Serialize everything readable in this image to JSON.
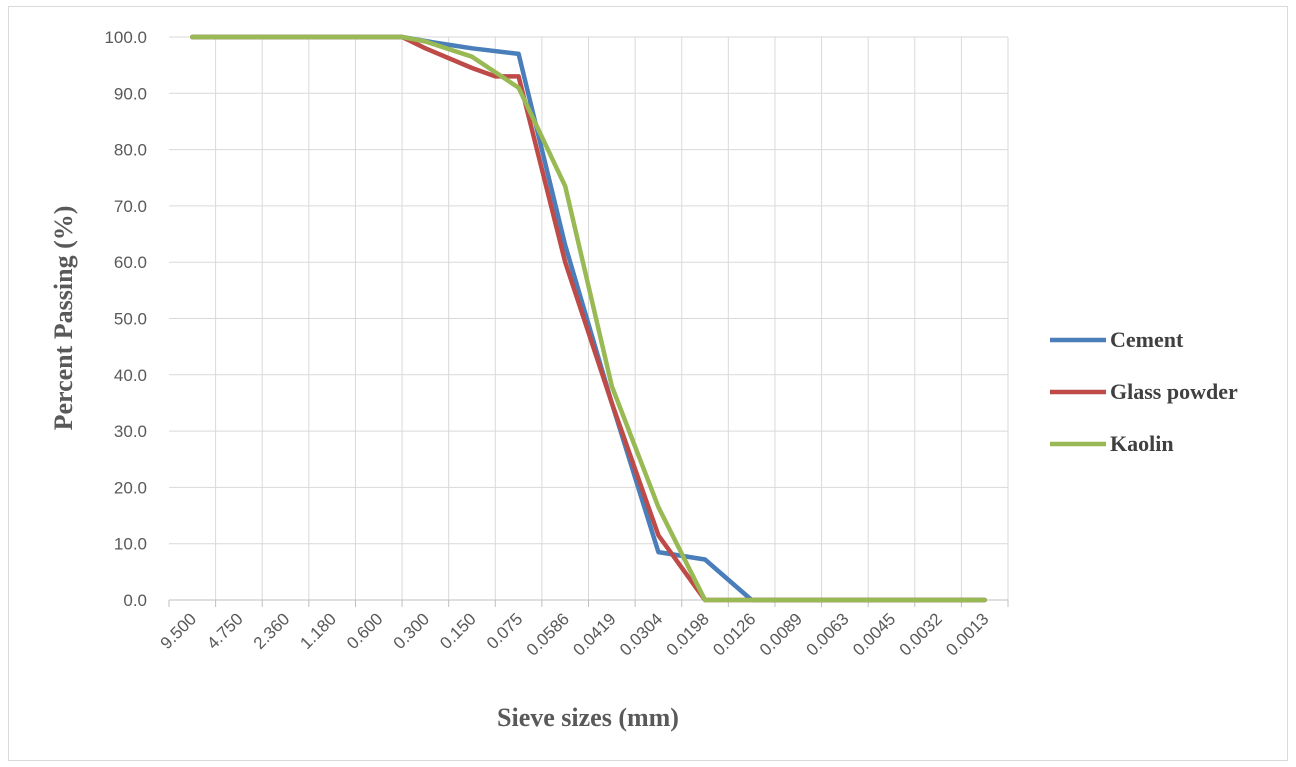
{
  "chart_data": {
    "type": "line",
    "xlabel": "Sieve sizes (mm)",
    "ylabel": "Percent Passing (%)",
    "ylim": [
      0,
      100
    ],
    "ytick_step": 10,
    "y_tick_decimals": 1,
    "grid": true,
    "legend_position": "right",
    "categories": [
      "9.500",
      "4.750",
      "2.360",
      "1.180",
      "0.600",
      "0.300",
      "0.150",
      "0.075",
      "0.0586",
      "0.0419",
      "0.0304",
      "0.0198",
      "0.0126",
      "0.0089",
      "0.0063",
      "0.0045",
      "0.0032",
      "0.0013"
    ],
    "series": [
      {
        "name": "Cement",
        "color": "#4a7ebb",
        "points": [
          [
            0.5,
            100
          ],
          [
            1,
            100
          ],
          [
            2,
            100
          ],
          [
            3,
            100
          ],
          [
            4,
            100
          ],
          [
            5,
            100
          ],
          [
            5.7,
            99
          ],
          [
            6.5,
            98
          ],
          [
            7.5,
            97
          ],
          [
            8.5,
            63
          ],
          [
            9.5,
            35
          ],
          [
            10.5,
            8.5
          ],
          [
            11.5,
            7.2
          ],
          [
            12.5,
            0
          ],
          [
            13.5,
            0
          ],
          [
            14.5,
            0
          ],
          [
            15.5,
            0
          ],
          [
            16.5,
            0
          ],
          [
            17.5,
            0
          ]
        ]
      },
      {
        "name": "Glass powder",
        "color": "#be4b48",
        "points": [
          [
            0.5,
            100
          ],
          [
            1,
            100
          ],
          [
            2,
            100
          ],
          [
            3,
            100
          ],
          [
            4,
            100
          ],
          [
            5,
            100
          ],
          [
            5.5,
            98
          ],
          [
            6.5,
            94.5
          ],
          [
            7,
            93
          ],
          [
            7.5,
            93
          ],
          [
            8.5,
            60
          ],
          [
            9.5,
            35
          ],
          [
            10.5,
            11.5
          ],
          [
            11.5,
            0
          ],
          [
            12.5,
            0
          ],
          [
            13.5,
            0
          ],
          [
            14.5,
            0
          ],
          [
            15.5,
            0
          ],
          [
            16.5,
            0
          ],
          [
            17.5,
            0
          ]
        ]
      },
      {
        "name": "Kaolin",
        "color": "#98b954",
        "points": [
          [
            0.5,
            100
          ],
          [
            1,
            100
          ],
          [
            2,
            100
          ],
          [
            3,
            100
          ],
          [
            4,
            100
          ],
          [
            5,
            100
          ],
          [
            5.5,
            99.2
          ],
          [
            6.5,
            96.5
          ],
          [
            7.5,
            91
          ],
          [
            8.5,
            73.5
          ],
          [
            9.5,
            38
          ],
          [
            10.5,
            16.5
          ],
          [
            11.5,
            0
          ],
          [
            12.5,
            0
          ],
          [
            13.5,
            0
          ],
          [
            14.5,
            0
          ],
          [
            15.5,
            0
          ],
          [
            16.5,
            0
          ],
          [
            17.5,
            0
          ]
        ]
      }
    ]
  }
}
